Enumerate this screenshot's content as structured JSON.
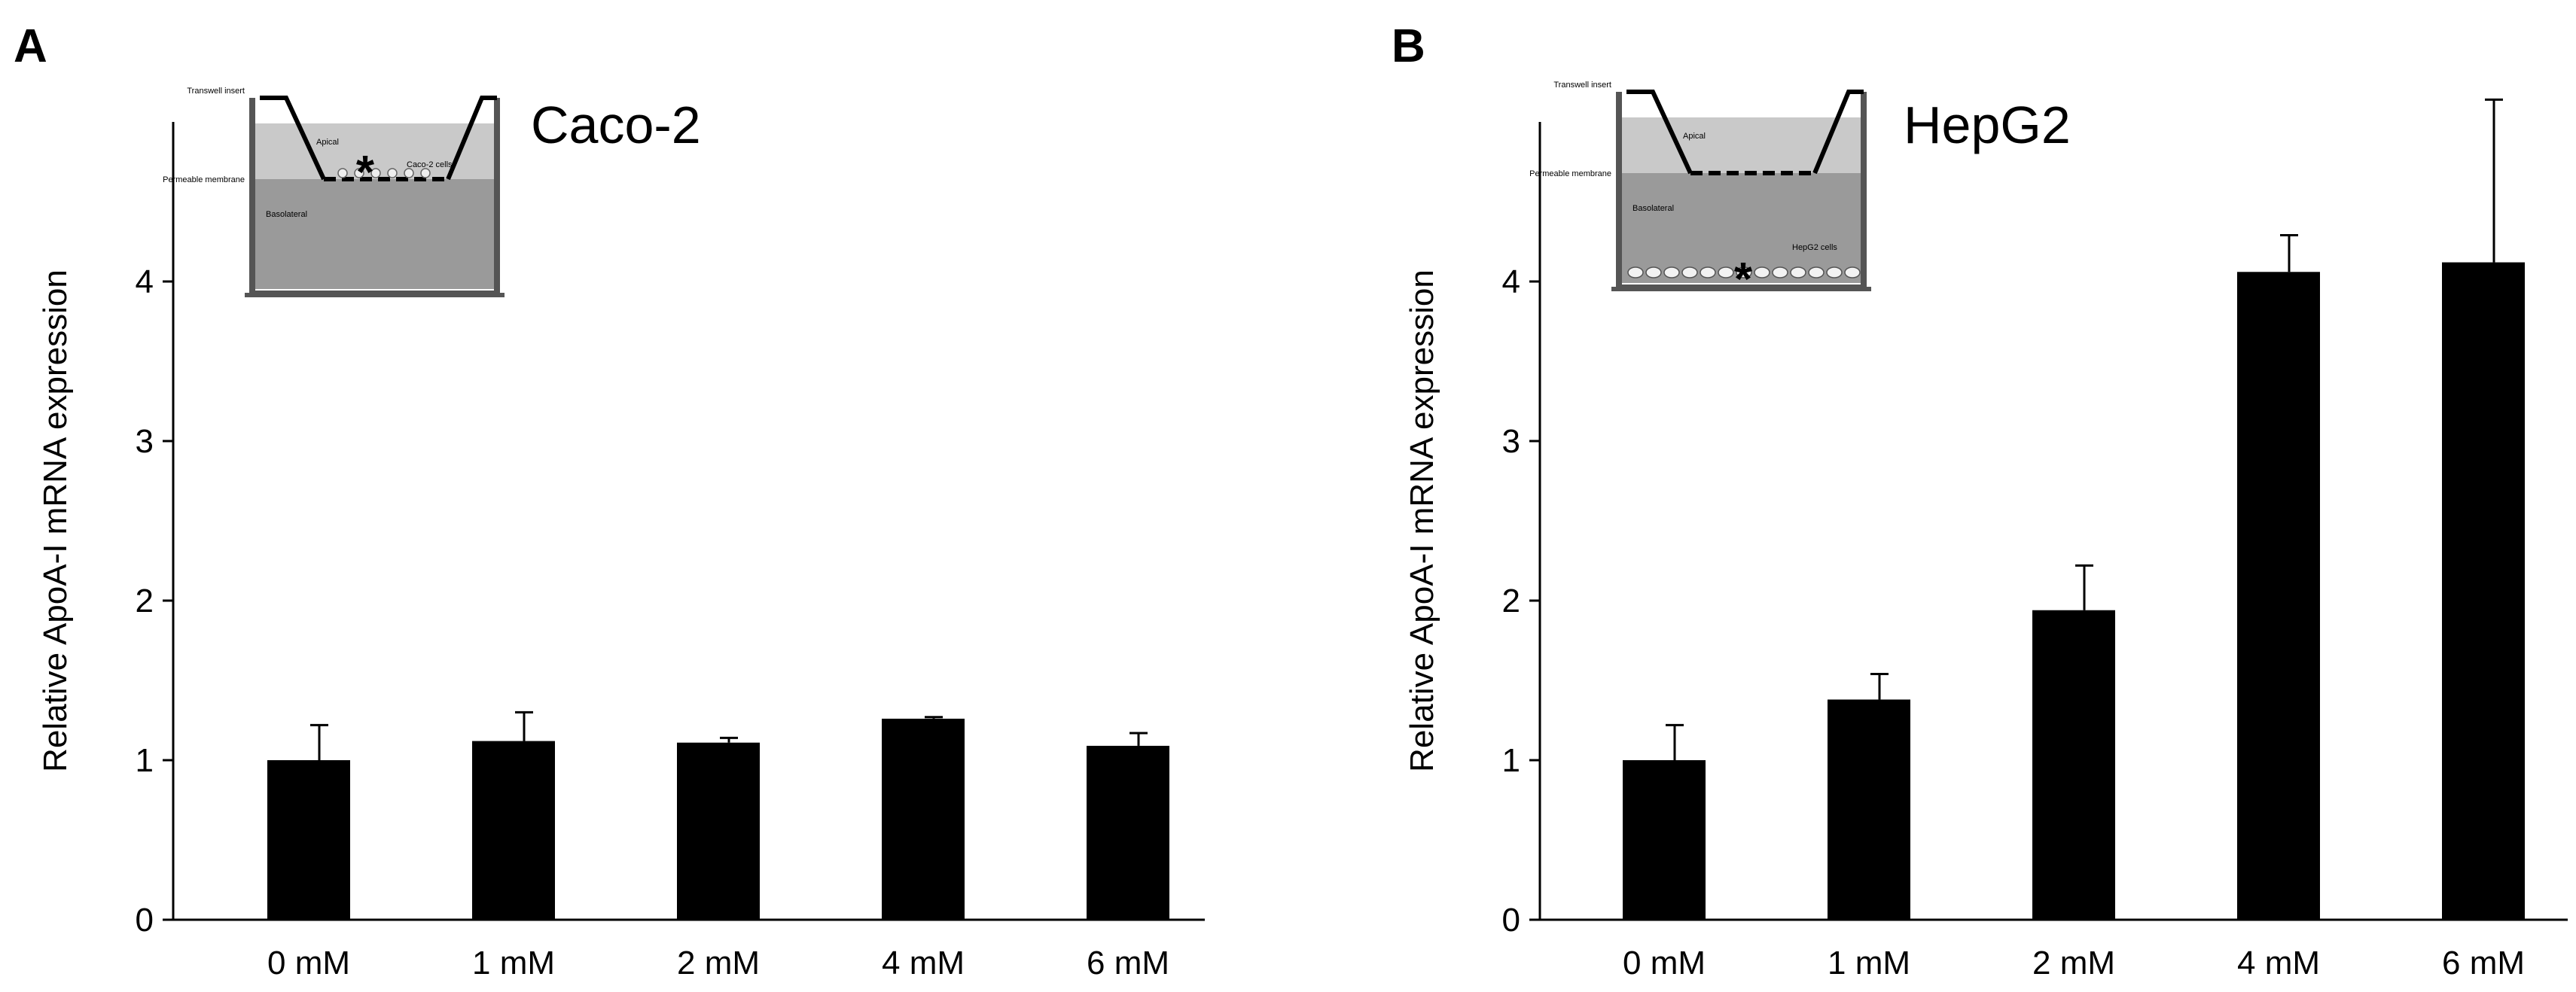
{
  "chart_data": [
    {
      "type": "bar",
      "panel_label": "A",
      "cell_line": "Caco-2",
      "categories": [
        "0 mM",
        "1 mM",
        "2 mM",
        "4 mM",
        "6 mM"
      ],
      "series": [
        {
          "name": "Relative ApoA-I mRNA expression",
          "values": [
            1.0,
            1.12,
            1.11,
            1.26,
            1.09
          ],
          "errors": [
            0.22,
            0.18,
            0.03,
            0.01,
            0.08
          ]
        }
      ],
      "ylabel": "Relative ApoA-I mRNA expression",
      "xlabel": "",
      "ylim": [
        0,
        5
      ],
      "yticks": [
        "0",
        "1",
        "2",
        "3",
        "4"
      ],
      "color": "#000000",
      "inset": {
        "transwell_insert": "Transwell insert",
        "apical": "Apical",
        "permeable_membrane": "Permeable membrane",
        "basolateral": "Basolateral",
        "cells": "Caco-2 cells",
        "marker": "*"
      }
    },
    {
      "type": "bar",
      "panel_label": "B",
      "cell_line": "HepG2",
      "categories": [
        "0 mM",
        "1 mM",
        "2 mM",
        "4 mM",
        "6 mM"
      ],
      "series": [
        {
          "name": "Relative ApoA-I mRNA expression",
          "values": [
            1.0,
            1.38,
            1.94,
            4.06,
            4.12
          ],
          "errors": [
            0.22,
            0.16,
            0.28,
            0.23,
            1.02
          ]
        }
      ],
      "ylabel": "Relative ApoA-I mRNA expression",
      "xlabel": "",
      "ylim": [
        0,
        5
      ],
      "yticks": [
        "0",
        "1",
        "2",
        "3",
        "4"
      ],
      "color": "#000000",
      "inset": {
        "transwell_insert": "Transwell insert",
        "apical": "Apical",
        "permeable_membrane": "Permeable membrane",
        "basolateral": "Basolateral",
        "cells": "HepG2 cells",
        "marker": "*"
      }
    }
  ]
}
